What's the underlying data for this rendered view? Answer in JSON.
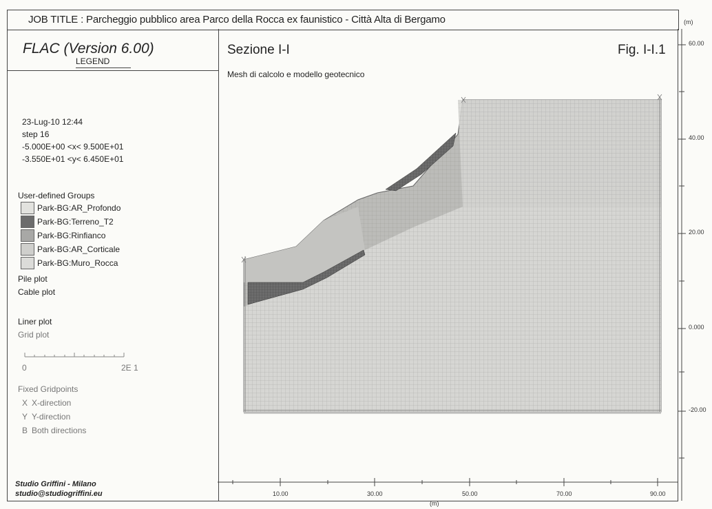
{
  "header": {
    "job_title": "JOB TITLE : Parcheggio pubblico area Parco della Rocca ex faunistico - Città Alta di Bergamo"
  },
  "left": {
    "software": "FLAC (Version 6.00)",
    "legend_title": "LEGEND",
    "date_time": "23-Lug-10  12:44",
    "step": "step   16",
    "x_range": "-5.000E+00 <x< 9.500E+01",
    "y_range": "-3.550E+01 <y< 6.450E+01",
    "groups_title": "User-defined Groups",
    "groups": [
      {
        "label": "Park-BG:AR_Profondo",
        "color": "#e2e2de"
      },
      {
        "label": "Park-BG:Terreno_T2",
        "color": "#6c6c6c"
      },
      {
        "label": "Park-BG:Rinfianco",
        "color": "#a8a8a6"
      },
      {
        "label": "Park-BG:AR_Corticale",
        "color": "#cfcfcc"
      },
      {
        "label": "Park-BG:Muro_Rocca",
        "color": "#dcdcd9"
      }
    ],
    "pile_plot": "Pile plot",
    "cable_plot": "Cable plot",
    "liner_plot": "Liner plot",
    "grid_plot": "Grid plot",
    "scale_zero": "0",
    "scale_max": "2E 1",
    "fixed_title": "Fixed Gridpoints",
    "fixed_items": [
      {
        "symbol": "X",
        "label": "X-direction"
      },
      {
        "symbol": "Y",
        "label": "Y-direction"
      },
      {
        "symbol": "B",
        "label": "Both directions"
      }
    ],
    "footer_line1": "Studio Griffini - Milano",
    "footer_line2": "studio@studiogriffini.eu"
  },
  "plot": {
    "title": "Sezione I-I",
    "fig": "Fig. I-I.1",
    "subtitle": "Mesh di calcolo e modello geotecnico",
    "y_unit": "(m)",
    "x_unit": "(m)",
    "y_ticks": [
      "60.00",
      "40.00",
      "20.00",
      "0.000",
      "-20.00"
    ],
    "x_ticks": [
      "10.00",
      "30.00",
      "50.00",
      "70.00",
      "90.00"
    ]
  },
  "colors": {
    "mesh_light": "#d6d6d3",
    "mesh_dark": "#6c6c6c",
    "mesh_mid": "#bcbcb9",
    "grid_line": "#9a9a97"
  }
}
